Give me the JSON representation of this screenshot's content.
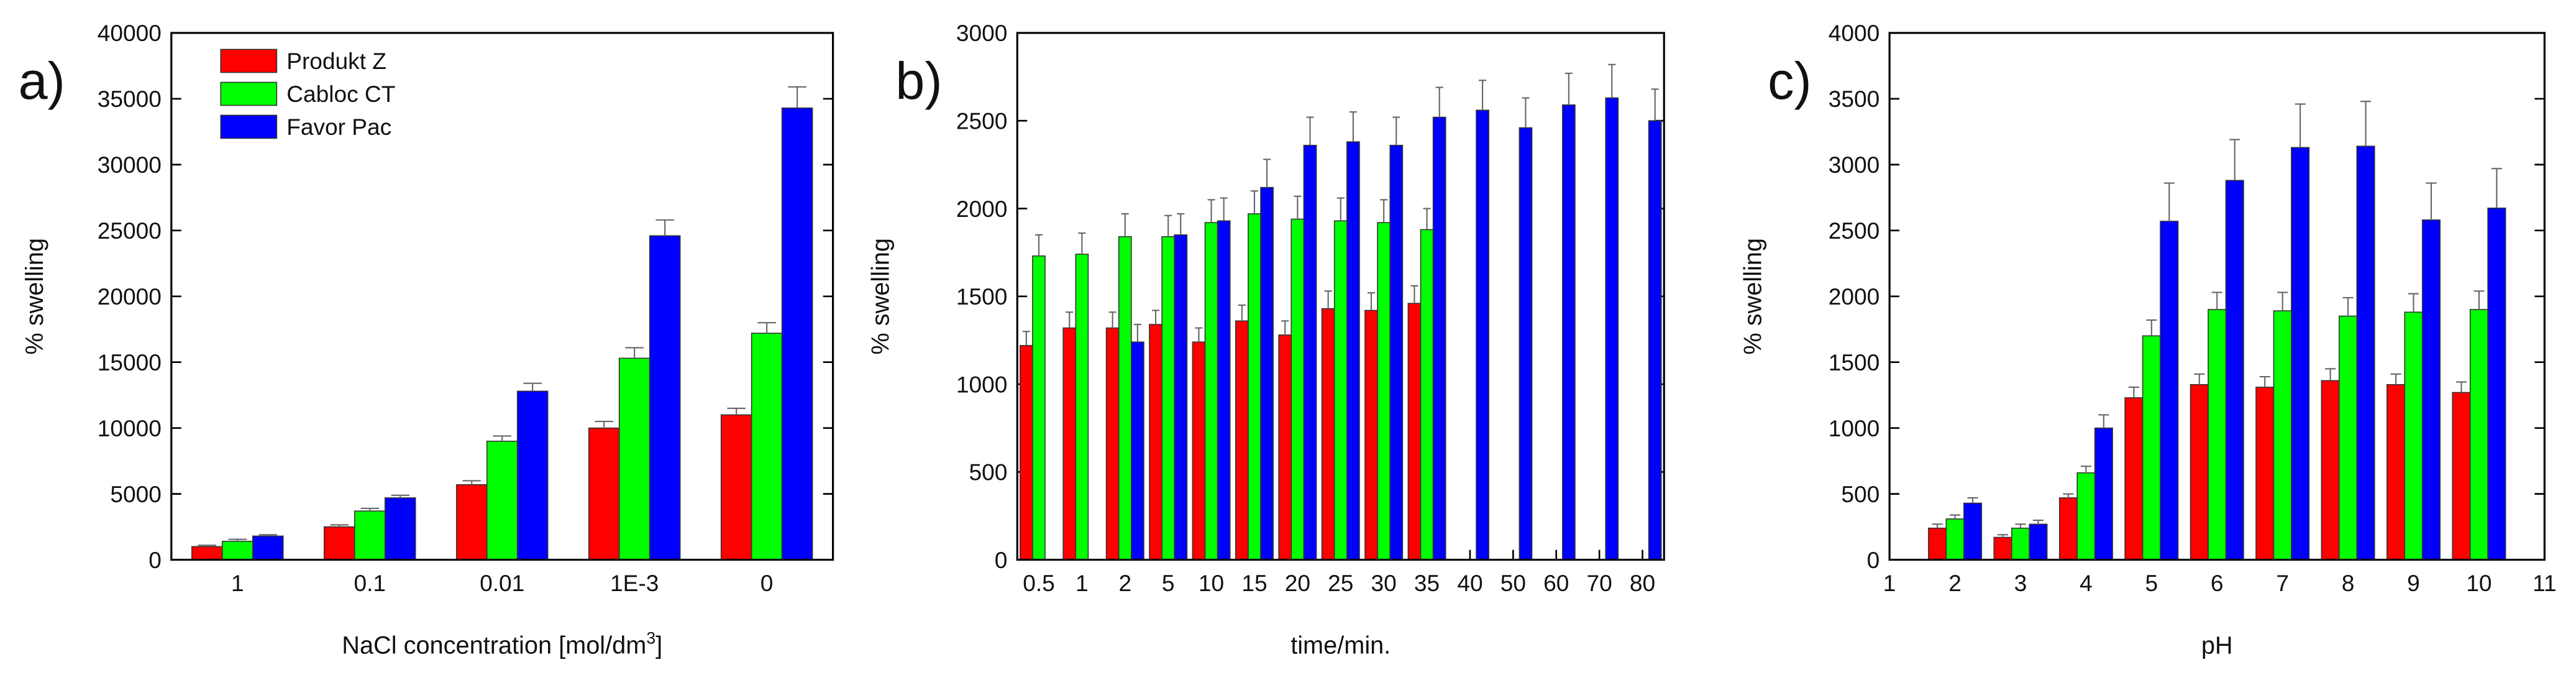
{
  "chart_data": [
    {
      "type": "bar",
      "panel_label": "a)",
      "y_label": "% swelling",
      "x_label": "NaCl concentration [mol/dm",
      "x_label_sup": "3",
      "x_label_end": "]",
      "categories": [
        "1",
        "0.1",
        "0.01",
        "1E-3",
        "0"
      ],
      "series": [
        {
          "name": "Produkt Z",
          "color": "#ff0000",
          "values": [
            1000,
            2500,
            5700,
            10000,
            11000
          ],
          "errors": [
            100,
            150,
            300,
            500,
            500
          ]
        },
        {
          "name": "Cabloc CT",
          "color": "#00ff00",
          "values": [
            1400,
            3700,
            9000,
            15300,
            17200
          ],
          "errors": [
            150,
            200,
            400,
            800,
            800
          ]
        },
        {
          "name": "Favor Pac",
          "color": "#0000ff",
          "values": [
            1800,
            4700,
            12800,
            24600,
            34300
          ],
          "errors": [
            100,
            200,
            600,
            1200,
            1600
          ]
        }
      ],
      "ylim": [
        0,
        40000
      ],
      "yticks": [
        0,
        5000,
        10000,
        15000,
        20000,
        25000,
        30000,
        35000,
        40000
      ],
      "legend": "upper-left"
    },
    {
      "type": "bar",
      "panel_label": "b)",
      "y_label": "% swelling",
      "x_label": "time/min.",
      "categories": [
        "0.5",
        "1",
        "2",
        "5",
        "10",
        "15",
        "20",
        "25",
        "30",
        "35",
        "40",
        "50",
        "60",
        "70",
        "80"
      ],
      "series": [
        {
          "color": "#ff0000",
          "values": [
            1220,
            1320,
            1320,
            1340,
            1240,
            1360,
            1280,
            1430,
            1420,
            1460,
            null,
            null,
            null,
            null,
            null
          ],
          "errors": [
            80,
            90,
            90,
            80,
            80,
            90,
            80,
            100,
            100,
            100,
            null,
            null,
            null,
            null,
            null
          ]
        },
        {
          "color": "#00ff00",
          "values": [
            1730,
            1740,
            1840,
            1840,
            1920,
            1970,
            1940,
            1930,
            1920,
            1880,
            null,
            null,
            null,
            null,
            null
          ],
          "errors": [
            120,
            120,
            130,
            120,
            130,
            130,
            130,
            130,
            130,
            120,
            null,
            null,
            null,
            null,
            null
          ]
        },
        {
          "color": "#0000ff",
          "values": [
            null,
            null,
            1240,
            1850,
            1930,
            2120,
            2360,
            2380,
            2360,
            2520,
            2560,
            2460,
            2590,
            2630,
            2500
          ],
          "errors": [
            null,
            null,
            100,
            120,
            130,
            160,
            160,
            170,
            160,
            170,
            170,
            170,
            180,
            190,
            180
          ]
        }
      ],
      "ylim": [
        0,
        3000
      ],
      "yticks": [
        0,
        500,
        1000,
        1500,
        2000,
        2500,
        3000
      ]
    },
    {
      "type": "bar",
      "panel_label": "c)",
      "y_label": "% swelling",
      "x_label": "pH",
      "x": [
        2,
        3,
        4,
        5,
        6,
        7,
        8,
        9,
        10
      ],
      "series": [
        {
          "color": "#ff0000",
          "values": [
            240,
            170,
            470,
            1230,
            1330,
            1310,
            1360,
            1330,
            1270
          ],
          "errors": [
            30,
            20,
            30,
            80,
            80,
            80,
            90,
            80,
            80
          ]
        },
        {
          "color": "#00ff00",
          "values": [
            310,
            240,
            660,
            1700,
            1900,
            1890,
            1850,
            1880,
            1900
          ],
          "errors": [
            30,
            30,
            50,
            120,
            130,
            140,
            140,
            140,
            140
          ]
        },
        {
          "color": "#0000ff",
          "values": [
            430,
            270,
            1000,
            2570,
            2880,
            3130,
            3140,
            2580,
            2670
          ],
          "errors": [
            40,
            30,
            100,
            290,
            310,
            330,
            340,
            280,
            300
          ]
        }
      ],
      "xlim": [
        1,
        11
      ],
      "xticks": [
        1,
        2,
        3,
        4,
        5,
        6,
        7,
        8,
        9,
        10,
        11
      ],
      "ylim": [
        0,
        4000
      ],
      "yticks": [
        0,
        500,
        1000,
        1500,
        2000,
        2500,
        3000,
        3500,
        4000
      ]
    }
  ]
}
